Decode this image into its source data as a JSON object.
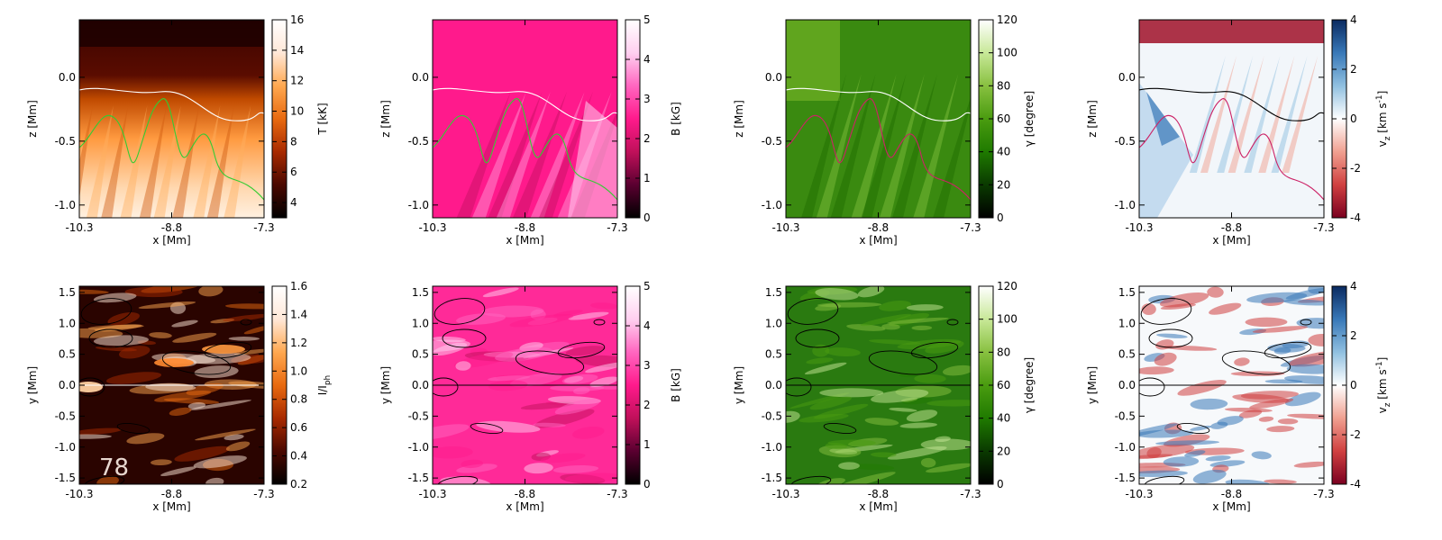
{
  "chart_data": [
    {
      "type": "heatmap",
      "panel": "temperature-vertical-slice",
      "xlabel": "x [Mm]",
      "ylabel": "z [Mm]",
      "xlim": [
        -10.3,
        -7.3
      ],
      "ylim": [
        -1.1,
        0.45
      ],
      "xticks": [
        "-10.3",
        "-8.8",
        "-7.3"
      ],
      "yticks": [
        "-1.0",
        "-0.5",
        "0.0"
      ],
      "colorbar": {
        "label": "T [kK]",
        "range": [
          3,
          16
        ],
        "ticks": [
          "4",
          "6",
          "8",
          "10",
          "12",
          "14",
          "16"
        ],
        "colormap": [
          "#000000",
          "#4a0800",
          "#a82a00",
          "#e86a10",
          "#ffa850",
          "#ffe8d8",
          "#ffffff"
        ]
      },
      "contours": [
        {
          "color": "#ffffff"
        },
        {
          "color": "#33cc33"
        }
      ]
    },
    {
      "type": "heatmap",
      "panel": "field-strength-vertical-slice",
      "xlabel": "x [Mm]",
      "ylabel": "z [Mm]",
      "xlim": [
        -10.3,
        -7.3
      ],
      "ylim": [
        -1.1,
        0.45
      ],
      "xticks": [
        "-10.3",
        "-8.8",
        "-7.3"
      ],
      "yticks": [
        "-1.0",
        "-0.5",
        "0.0"
      ],
      "colorbar": {
        "label": "B [kG]",
        "range": [
          0,
          5
        ],
        "ticks": [
          "0",
          "1",
          "2",
          "3",
          "4",
          "5"
        ],
        "colormap": [
          "#000000",
          "#5a0030",
          "#c0105a",
          "#ff1a8c",
          "#ff66c0",
          "#ffd0f0",
          "#ffffff"
        ]
      },
      "contours": [
        {
          "color": "#ffffff"
        },
        {
          "color": "#33cc33"
        }
      ]
    },
    {
      "type": "heatmap",
      "panel": "inclination-vertical-slice",
      "xlabel": "x [Mm]",
      "ylabel": "z [Mm]",
      "xlim": [
        -10.3,
        -7.3
      ],
      "ylim": [
        -1.1,
        0.45
      ],
      "xticks": [
        "-10.3",
        "-8.8",
        "-7.3"
      ],
      "yticks": [
        "-1.0",
        "-0.5",
        "0.0"
      ],
      "colorbar": {
        "label": "γ [degree]",
        "range": [
          0,
          120
        ],
        "ticks": [
          "0",
          "20",
          "40",
          "60",
          "80",
          "100",
          "120"
        ],
        "colormap": [
          "#000000",
          "#0a3a00",
          "#1f7a00",
          "#4a9c10",
          "#88c040",
          "#c8e898",
          "#ffffff"
        ]
      },
      "contours": [
        {
          "color": "#ffffff"
        },
        {
          "color": "#cc2266"
        }
      ]
    },
    {
      "type": "heatmap",
      "panel": "vertical-velocity-vertical-slice",
      "xlabel": "x [Mm]",
      "ylabel": "z [Mm]",
      "xlim": [
        -10.3,
        -7.3
      ],
      "ylim": [
        -1.1,
        0.45
      ],
      "xticks": [
        "-10.3",
        "-8.8",
        "-7.3"
      ],
      "yticks": [
        "-1.0",
        "-0.5",
        "0.0"
      ],
      "colorbar": {
        "label": "v_z [km s^-1]",
        "range": [
          -4,
          4
        ],
        "ticks": [
          "-4",
          "-2",
          "0",
          "2",
          "4"
        ],
        "colormap": [
          "#7a0020",
          "#d04040",
          "#f0a090",
          "#ffffff",
          "#90c0e0",
          "#3878b8",
          "#0a2a60"
        ]
      },
      "contours": [
        {
          "color": "#000000"
        },
        {
          "color": "#cc2266"
        }
      ]
    },
    {
      "type": "heatmap",
      "panel": "intensity-horizontal-map",
      "xlabel": "x [Mm]",
      "ylabel": "y [Mm]",
      "xlim": [
        -10.3,
        -7.3
      ],
      "ylim": [
        -1.6,
        1.6
      ],
      "xticks": [
        "-10.3",
        "-8.8",
        "-7.3"
      ],
      "yticks": [
        "-1.5",
        "-1.0",
        "-0.5",
        "0.0",
        "0.5",
        "1.0",
        "1.5"
      ],
      "colorbar": {
        "label": "I/I_ph",
        "range": [
          0.2,
          1.6
        ],
        "ticks": [
          "0.2",
          "0.4",
          "0.6",
          "0.8",
          "1.0",
          "1.2",
          "1.4",
          "1.6"
        ],
        "colormap": [
          "#000000",
          "#4a0800",
          "#a82a00",
          "#e86a10",
          "#ffa850",
          "#ffe8d8",
          "#ffffff"
        ]
      },
      "annotation": "78",
      "contours": [
        {
          "color": "#000000"
        }
      ]
    },
    {
      "type": "heatmap",
      "panel": "field-strength-horizontal-map",
      "xlabel": "x [Mm]",
      "ylabel": "y [Mm]",
      "xlim": [
        -10.3,
        -7.3
      ],
      "ylim": [
        -1.6,
        1.6
      ],
      "xticks": [
        "-10.3",
        "-8.8",
        "-7.3"
      ],
      "yticks": [
        "-1.5",
        "-1.0",
        "-0.5",
        "0.0",
        "0.5",
        "1.0",
        "1.5"
      ],
      "colorbar": {
        "label": "B [kG]",
        "range": [
          0,
          5
        ],
        "ticks": [
          "0",
          "1",
          "2",
          "3",
          "4",
          "5"
        ],
        "colormap": [
          "#000000",
          "#5a0030",
          "#c0105a",
          "#ff1a8c",
          "#ff66c0",
          "#ffd0f0",
          "#ffffff"
        ]
      },
      "contours": [
        {
          "color": "#000000"
        }
      ]
    },
    {
      "type": "heatmap",
      "panel": "inclination-horizontal-map",
      "xlabel": "x [Mm]",
      "ylabel": "y [Mm]",
      "xlim": [
        -10.3,
        -7.3
      ],
      "ylim": [
        -1.6,
        1.6
      ],
      "xticks": [
        "-10.3",
        "-8.8",
        "-7.3"
      ],
      "yticks": [
        "-1.5",
        "-1.0",
        "-0.5",
        "0.0",
        "0.5",
        "1.0",
        "1.5"
      ],
      "colorbar": {
        "label": "γ [degree]",
        "range": [
          0,
          120
        ],
        "ticks": [
          "0",
          "20",
          "40",
          "60",
          "80",
          "100",
          "120"
        ],
        "colormap": [
          "#000000",
          "#0a3a00",
          "#1f7a00",
          "#4a9c10",
          "#88c040",
          "#c8e898",
          "#ffffff"
        ]
      },
      "contours": [
        {
          "color": "#000000"
        }
      ]
    },
    {
      "type": "heatmap",
      "panel": "vertical-velocity-horizontal-map",
      "xlabel": "x [Mm]",
      "ylabel": "y [Mm]",
      "xlim": [
        -10.3,
        -7.3
      ],
      "ylim": [
        -1.6,
        1.6
      ],
      "xticks": [
        "-10.3",
        "-8.8",
        "-7.3"
      ],
      "yticks": [
        "-1.5",
        "-1.0",
        "-0.5",
        "0.0",
        "0.5",
        "1.0",
        "1.5"
      ],
      "colorbar": {
        "label": "v_z [km s^-1]",
        "range": [
          -4,
          4
        ],
        "ticks": [
          "-4",
          "-2",
          "0",
          "2",
          "4"
        ],
        "colormap": [
          "#7a0020",
          "#d04040",
          "#f0a090",
          "#ffffff",
          "#90c0e0",
          "#3878b8",
          "#0a2a60"
        ]
      },
      "contours": [
        {
          "color": "#000000"
        }
      ]
    }
  ]
}
